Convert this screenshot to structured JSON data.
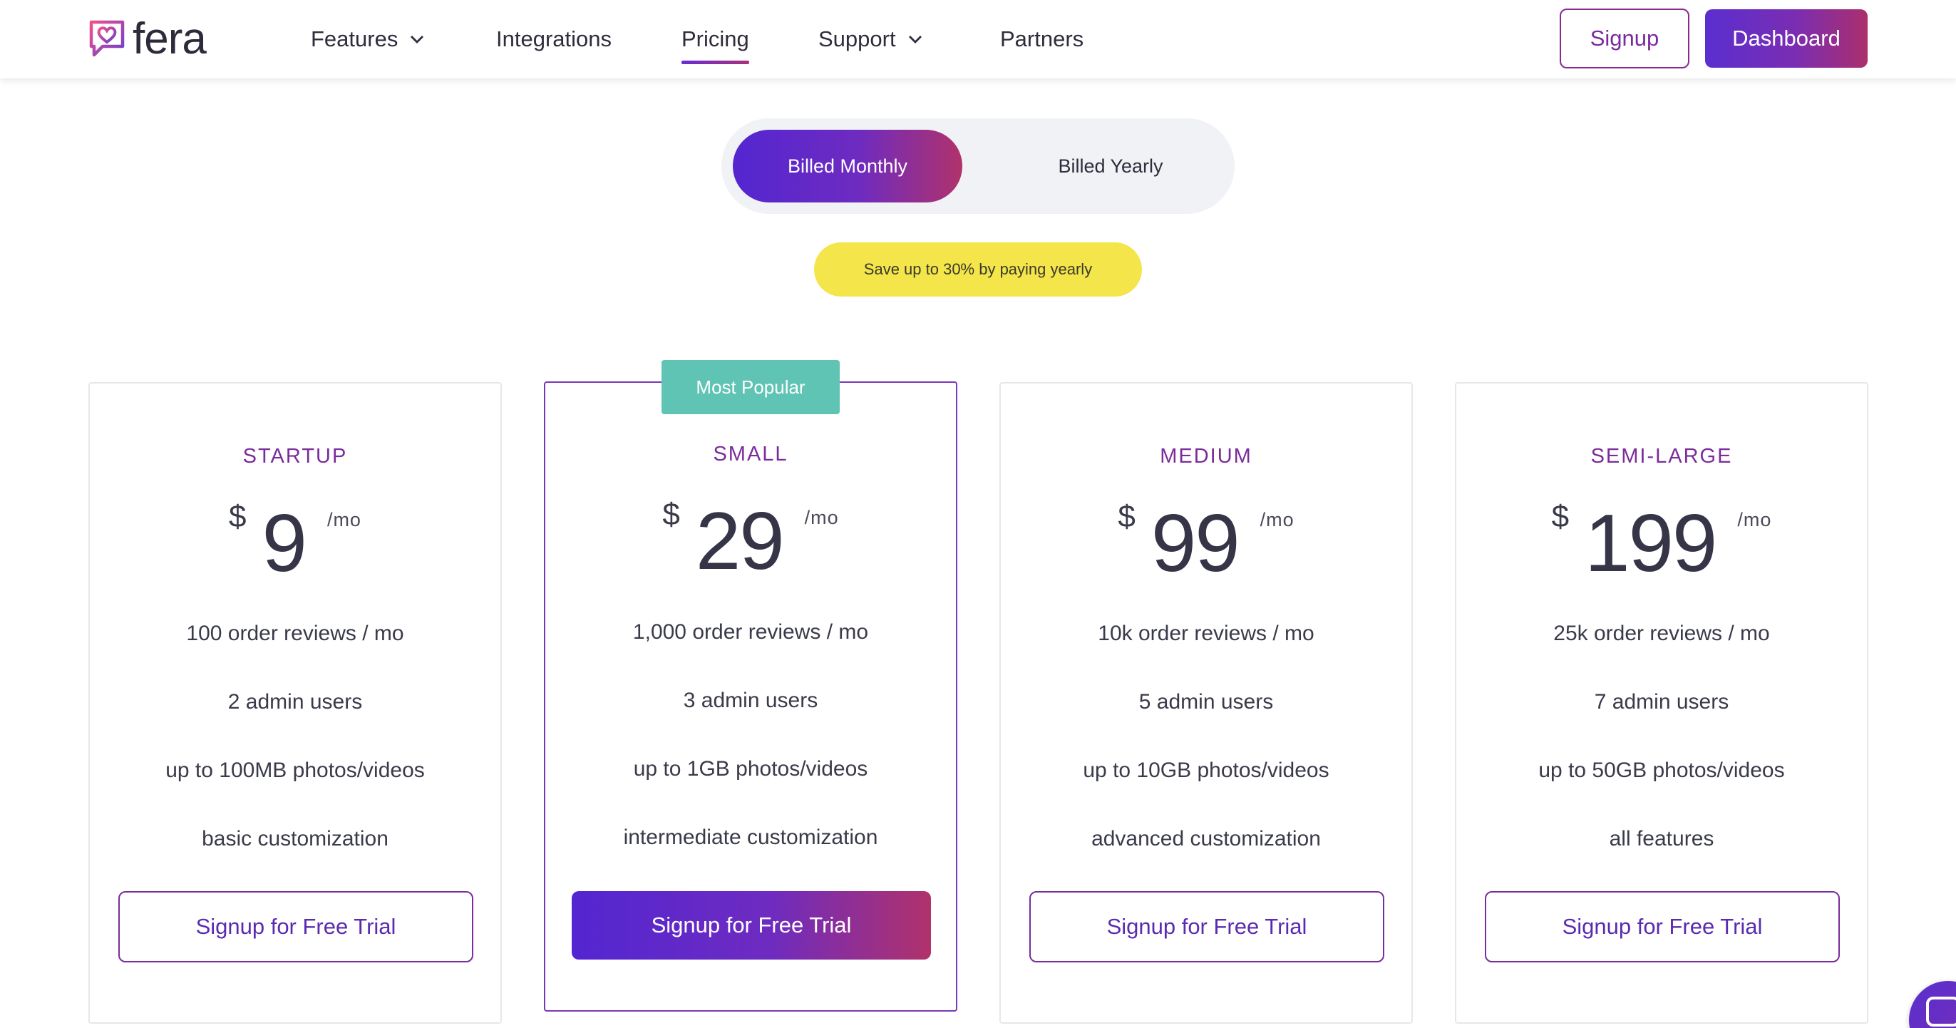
{
  "brand": {
    "name": "fera",
    "accent": "#7b2c9b",
    "gradient_start": "#5326d1",
    "gradient_end": "#b0326b"
  },
  "nav": {
    "items": [
      {
        "label": "Features",
        "has_dropdown": true
      },
      {
        "label": "Integrations",
        "has_dropdown": false
      },
      {
        "label": "Pricing",
        "has_dropdown": false,
        "active": true
      },
      {
        "label": "Support",
        "has_dropdown": true
      },
      {
        "label": "Partners",
        "has_dropdown": false
      }
    ],
    "signup_label": "Signup",
    "dashboard_label": "Dashboard"
  },
  "billing": {
    "monthly_label": "Billed Monthly",
    "yearly_label": "Billed Yearly",
    "selected": "monthly",
    "save_note": "Save up to 30% by paying yearly"
  },
  "plans": [
    {
      "name": "STARTUP",
      "currency": "$",
      "price": "9",
      "period": "/mo",
      "features": [
        "100 order reviews / mo",
        "2 admin users",
        "up to 100MB photos/videos",
        "basic customization"
      ],
      "cta": "Signup for Free Trial",
      "popular": false
    },
    {
      "name": "SMALL",
      "currency": "$",
      "price": "29",
      "period": "/mo",
      "features": [
        "1,000 order reviews / mo",
        "3 admin users",
        "up to 1GB photos/videos",
        "intermediate customization"
      ],
      "cta": "Signup for Free Trial",
      "popular": true,
      "badge": "Most Popular"
    },
    {
      "name": "MEDIUM",
      "currency": "$",
      "price": "99",
      "period": "/mo",
      "features": [
        "10k order reviews / mo",
        "5 admin users",
        "up to 10GB photos/videos",
        "advanced customization"
      ],
      "cta": "Signup for Free Trial",
      "popular": false
    },
    {
      "name": "SEMI-LARGE",
      "currency": "$",
      "price": "199",
      "period": "/mo",
      "features": [
        "25k order reviews / mo",
        "7 admin users",
        "up to 50GB photos/videos",
        "all features"
      ],
      "cta": "Signup for Free Trial",
      "popular": false
    }
  ],
  "chat_widget": {
    "icon": "chat-icon"
  }
}
